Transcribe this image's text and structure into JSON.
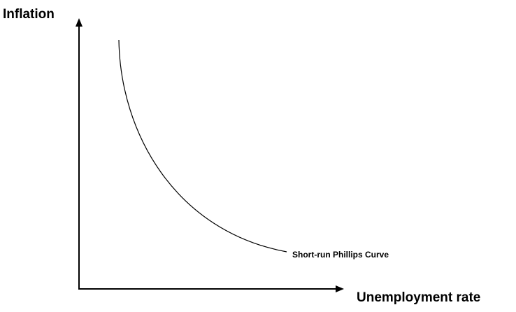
{
  "diagram": {
    "y_axis": {
      "label": "Inflation"
    },
    "x_axis": {
      "label": "Unemployment rate"
    },
    "curve": {
      "label": "Short-run Phillips Curve"
    }
  }
}
